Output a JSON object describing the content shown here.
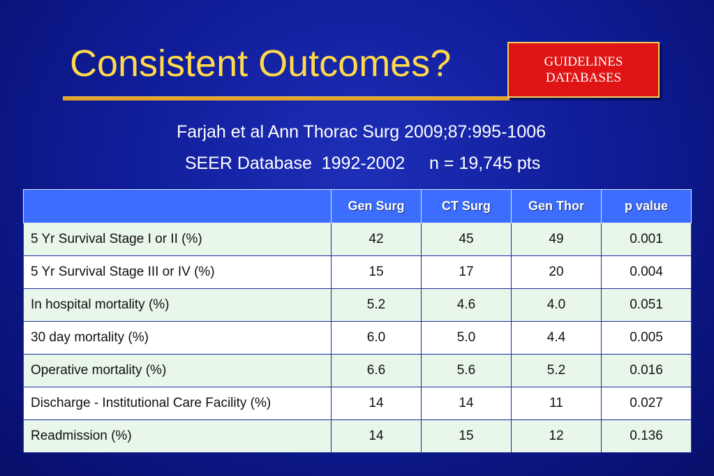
{
  "slide": {
    "title": "Consistent Outcomes?",
    "badge": {
      "line1": "GUIDELINES",
      "line2": "DATABASES"
    },
    "subtitle1": "Farjah et al Ann Thorac Surg 2009;87:995-1006",
    "subtitle2": "SEER Database  1992-2002     n = 19,745 pts"
  },
  "table": {
    "headers": [
      "",
      "Gen Surg",
      "CT Surg",
      "Gen Thor",
      "p value"
    ],
    "rows": [
      [
        "5 Yr Survival Stage I or II (%)",
        "42",
        "45",
        "49",
        "0.001"
      ],
      [
        "5 Yr Survival Stage III or IV (%)",
        "15",
        "17",
        "20",
        "0.004"
      ],
      [
        "In hospital mortality (%)",
        "5.2",
        "4.6",
        "4.0",
        "0.051"
      ],
      [
        "30 day mortality (%)",
        "6.0",
        "5.0",
        "4.4",
        "0.005"
      ],
      [
        "Operative mortality (%)",
        "6.6",
        "5.6",
        "5.2",
        "0.016"
      ],
      [
        "Discharge - Institutional Care Facility (%)",
        "14",
        "14",
        "11",
        "0.027"
      ],
      [
        "Readmission (%)",
        "14",
        "15",
        "12",
        "0.136"
      ]
    ]
  },
  "colors": {
    "background": "#101d9a",
    "title": "#ffd94a",
    "badge": "#e01414",
    "header": "#3d6dff",
    "row_alt": "#e9f6ea"
  }
}
